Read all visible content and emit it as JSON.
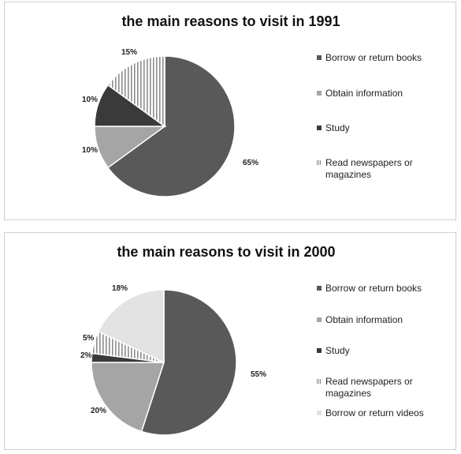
{
  "chart_data": [
    {
      "type": "pie",
      "title": "the main reasons to visit in 1991",
      "legend_position": "right",
      "slices": [
        {
          "name": "Borrow or return books",
          "value": 65,
          "label": "65%",
          "color": "#595959",
          "pattern": "solid"
        },
        {
          "name": "Obtain information",
          "value": 10,
          "label": "10%",
          "color": "#a5a5a5",
          "pattern": "solid"
        },
        {
          "name": "Study",
          "value": 10,
          "label": "10%",
          "color": "#3a3a3a",
          "pattern": "solid"
        },
        {
          "name": "Read newspapers or magazines",
          "value": 15,
          "label": "15%",
          "color": "#9a9a9a",
          "pattern": "stripes"
        }
      ]
    },
    {
      "type": "pie",
      "title": "the main reasons to visit in 2000",
      "legend_position": "right",
      "slices": [
        {
          "name": "Borrow or return books",
          "value": 55,
          "label": "55%",
          "color": "#595959",
          "pattern": "solid"
        },
        {
          "name": "Obtain information",
          "value": 20,
          "label": "20%",
          "color": "#a5a5a5",
          "pattern": "solid"
        },
        {
          "name": "Study",
          "value": 2,
          "label": "2%",
          "color": "#3a3a3a",
          "pattern": "solid"
        },
        {
          "name": "Read newspapers or magazines",
          "value": 5,
          "label": "5%",
          "color": "#9a9a9a",
          "pattern": "stripes"
        },
        {
          "name": "Borrow or return videos",
          "value": 18,
          "label": "18%",
          "color": "#e3e3e3",
          "pattern": "solid"
        }
      ]
    }
  ]
}
